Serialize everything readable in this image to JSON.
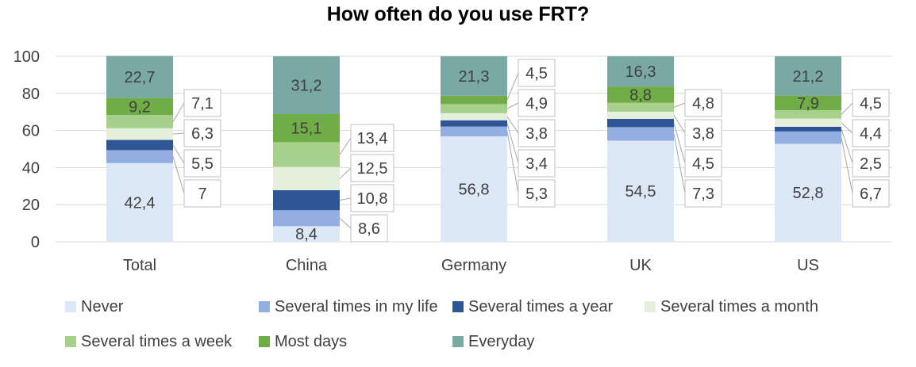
{
  "chart_data": {
    "type": "bar",
    "stacked": true,
    "title": "How often do you use FRT?",
    "xlabel": "",
    "ylabel": "",
    "ylim": [
      0,
      100
    ],
    "yticks": [
      0,
      20,
      40,
      60,
      80,
      100
    ],
    "grid": true,
    "legend_position": "bottom",
    "categories": [
      "Total",
      "China",
      "Germany",
      "UK",
      "US"
    ],
    "series": [
      {
        "name": "Never",
        "color": "#dce8f5",
        "values": [
          42.4,
          8.4,
          56.8,
          54.5,
          52.8
        ],
        "labels": [
          "42,4",
          "8,4",
          "56,8",
          "54,5",
          "52,8"
        ]
      },
      {
        "name": "Several times in my life",
        "color": "#93aee0",
        "values": [
          7,
          8.6,
          5.3,
          7.3,
          6.7
        ],
        "labels": [
          "7",
          "8,6",
          "5,3",
          "7,3",
          "6,7"
        ]
      },
      {
        "name": "Several times a year",
        "color": "#2e5596",
        "values": [
          5.5,
          10.8,
          3.4,
          4.5,
          2.5
        ],
        "labels": [
          "5,5",
          "10,8",
          "3,4",
          "4,5",
          "2,5"
        ]
      },
      {
        "name": "Several times a month",
        "color": "#e4f0dc",
        "values": [
          6.3,
          12.5,
          3.8,
          3.8,
          4.4
        ],
        "labels": [
          "6,3",
          "12,5",
          "3,8",
          "3,8",
          "4,4"
        ]
      },
      {
        "name": "Several times a week",
        "color": "#a8d08d",
        "values": [
          7.1,
          13.4,
          4.9,
          4.8,
          4.5
        ],
        "labels": [
          "7,1",
          "13,4",
          "4,9",
          "4,8",
          "4,5"
        ]
      },
      {
        "name": "Most days",
        "color": "#70ad47",
        "values": [
          9.2,
          15.1,
          4.5,
          8.8,
          7.9
        ],
        "labels": [
          "9,2",
          "15,1",
          "4,5",
          "8,8",
          "7,9"
        ]
      },
      {
        "name": "Everyday",
        "color": "#7aa8a4",
        "values": [
          22.7,
          31.2,
          21.3,
          16.3,
          21.2
        ],
        "labels": [
          "22,7",
          "31,2",
          "21,3",
          "16,3",
          "21,2"
        ]
      }
    ]
  }
}
